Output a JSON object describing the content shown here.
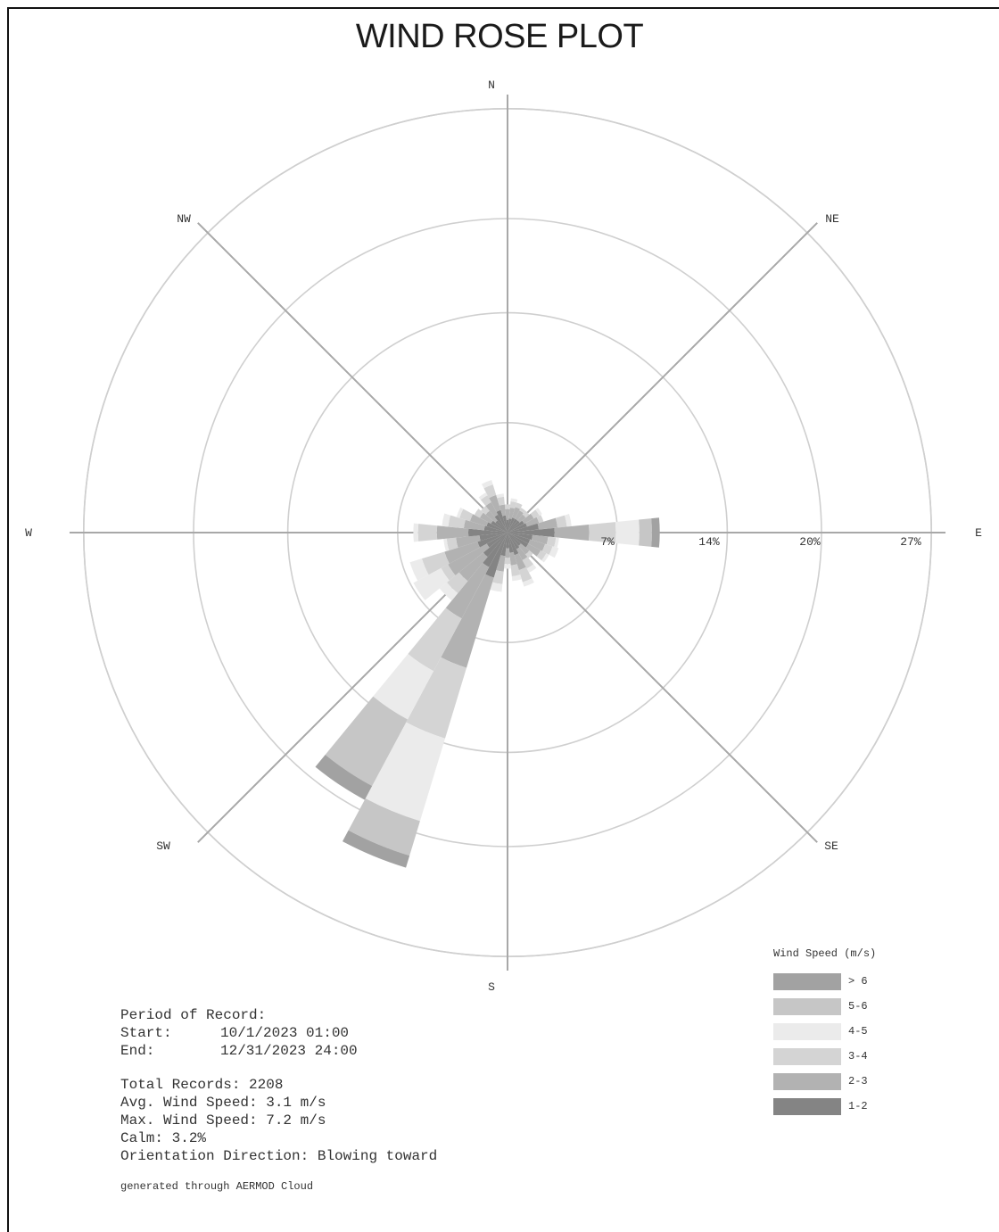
{
  "title": "WIND ROSE PLOT",
  "chart_data": {
    "type": "windrose",
    "title": "WIND ROSE PLOT",
    "directions": [
      "N",
      "NE",
      "E",
      "SE",
      "S",
      "SW",
      "W",
      "NW"
    ],
    "ring_labels": [
      "7%",
      "14%",
      "20%",
      "27%"
    ],
    "ring_values": [
      7,
      14,
      20,
      27
    ],
    "rmax": 30,
    "grid": true,
    "legend_position": "bottom-right",
    "legend_title": "Wind Speed (m/s)",
    "speed_bins": [
      "> 6",
      "5-6",
      "4-5",
      "3-4",
      "2-3",
      "1-2"
    ],
    "bin_colors": [
      "#a2a2a2",
      "#c6c6c6",
      "#ebebeb",
      "#d4d4d4",
      "#b2b2b2",
      "#848484"
    ],
    "sectors": [
      {
        "center_deg": 0,
        "freqs": [
          0.0,
          0.0,
          0.0,
          0.3,
          0.7,
          0.8
        ]
      },
      {
        "center_deg": 11.25,
        "freqs": [
          0.0,
          0.0,
          0.2,
          0.4,
          0.7,
          0.9
        ]
      },
      {
        "center_deg": 22.5,
        "freqs": [
          0.0,
          0.0,
          0.0,
          0.3,
          0.7,
          1.0
        ]
      },
      {
        "center_deg": 33.75,
        "freqs": [
          0.0,
          0.0,
          0.0,
          0.2,
          0.6,
          1.0
        ]
      },
      {
        "center_deg": 45,
        "freqs": [
          0.0,
          0.0,
          0.0,
          0.3,
          0.5,
          1.0
        ]
      },
      {
        "center_deg": 56.25,
        "freqs": [
          0.0,
          0.0,
          0.2,
          0.4,
          0.7,
          1.2
        ]
      },
      {
        "center_deg": 67.5,
        "freqs": [
          0.0,
          0.0,
          0.0,
          0.3,
          0.8,
          1.3
        ]
      },
      {
        "center_deg": 78.75,
        "freqs": [
          0.0,
          0.0,
          0.3,
          0.6,
          1.2,
          2.0
        ]
      },
      {
        "center_deg": 90,
        "freqs": [
          0.5,
          0.8,
          1.5,
          1.7,
          2.2,
          3.0
        ]
      },
      {
        "center_deg": 101.25,
        "freqs": [
          0.0,
          0.0,
          0.2,
          0.5,
          1.0,
          1.6
        ]
      },
      {
        "center_deg": 112.5,
        "freqs": [
          0.0,
          0.0,
          0.4,
          0.5,
          1.0,
          1.5
        ]
      },
      {
        "center_deg": 123.75,
        "freqs": [
          0.0,
          0.0,
          0.2,
          0.4,
          0.9,
          1.5
        ]
      },
      {
        "center_deg": 135,
        "freqs": [
          0.0,
          0.0,
          0.0,
          0.3,
          0.7,
          1.1
        ]
      },
      {
        "center_deg": 146.25,
        "freqs": [
          0.0,
          0.0,
          0.3,
          0.6,
          0.8,
          1.2
        ]
      },
      {
        "center_deg": 157.5,
        "freqs": [
          0.0,
          0.0,
          0.3,
          0.8,
          1.0,
          1.5
        ]
      },
      {
        "center_deg": 168.75,
        "freqs": [
          0.0,
          0.0,
          0.3,
          0.7,
          0.8,
          1.3
        ]
      },
      {
        "center_deg": 180,
        "freqs": [
          0.0,
          0.0,
          0.3,
          0.4,
          0.6,
          1.0
        ]
      },
      {
        "center_deg": 191.25,
        "freqs": [
          0.0,
          0.0,
          0.5,
          0.8,
          1.0,
          1.5
        ]
      },
      {
        "center_deg": 202.5,
        "freqs": [
          0.8,
          2.3,
          5.5,
          4.7,
          6.0,
          3.0
        ]
      },
      {
        "center_deg": 213.75,
        "freqs": [
          1.0,
          4.8,
          3.5,
          3.8,
          3.7,
          2.5
        ]
      },
      {
        "center_deg": 225,
        "freqs": [
          0.0,
          0.0,
          0.6,
          1.0,
          2.0,
          2.0
        ]
      },
      {
        "center_deg": 236.25,
        "freqs": [
          0.0,
          0.0,
          2.0,
          0.5,
          2.8,
          1.5
        ]
      },
      {
        "center_deg": 247.5,
        "freqs": [
          0.0,
          0.0,
          0.8,
          1.5,
          2.2,
          2.0
        ]
      },
      {
        "center_deg": 258.75,
        "freqs": [
          0.0,
          0.0,
          0.2,
          0.6,
          1.5,
          1.8
        ]
      },
      {
        "center_deg": 270,
        "freqs": [
          0.0,
          0.0,
          0.3,
          1.2,
          2.0,
          2.5
        ]
      },
      {
        "center_deg": 281.25,
        "freqs": [
          0.0,
          0.0,
          0.4,
          1.0,
          1.3,
          1.5
        ]
      },
      {
        "center_deg": 292.5,
        "freqs": [
          0.0,
          0.0,
          0.2,
          0.7,
          1.1,
          1.4
        ]
      },
      {
        "center_deg": 303.75,
        "freqs": [
          0.0,
          0.0,
          0.0,
          0.4,
          0.8,
          1.2
        ]
      },
      {
        "center_deg": 315,
        "freqs": [
          0.0,
          0.0,
          0.0,
          0.4,
          0.8,
          1.0
        ]
      },
      {
        "center_deg": 326.25,
        "freqs": [
          0.0,
          0.0,
          0.2,
          0.5,
          0.9,
          1.3
        ]
      },
      {
        "center_deg": 337.5,
        "freqs": [
          0.0,
          0.0,
          0.3,
          0.7,
          1.0,
          1.5
        ]
      },
      {
        "center_deg": 348.75,
        "freqs": [
          0.0,
          0.0,
          0.2,
          0.5,
          0.7,
          1.1
        ]
      }
    ]
  },
  "info": {
    "period_heading": "Period of Record:",
    "start_label": "Start:",
    "start_value": "10/1/2023 01:00",
    "end_label": "End:",
    "end_value": "12/31/2023 24:00",
    "total_records": "Total Records: 2208",
    "avg_speed": "Avg. Wind Speed: 3.1 m/s",
    "max_speed": "Max. Wind Speed: 7.2 m/s",
    "calm": "Calm: 3.2%",
    "orientation": "Orientation Direction: Blowing toward",
    "generated": "generated through AERMOD Cloud"
  }
}
